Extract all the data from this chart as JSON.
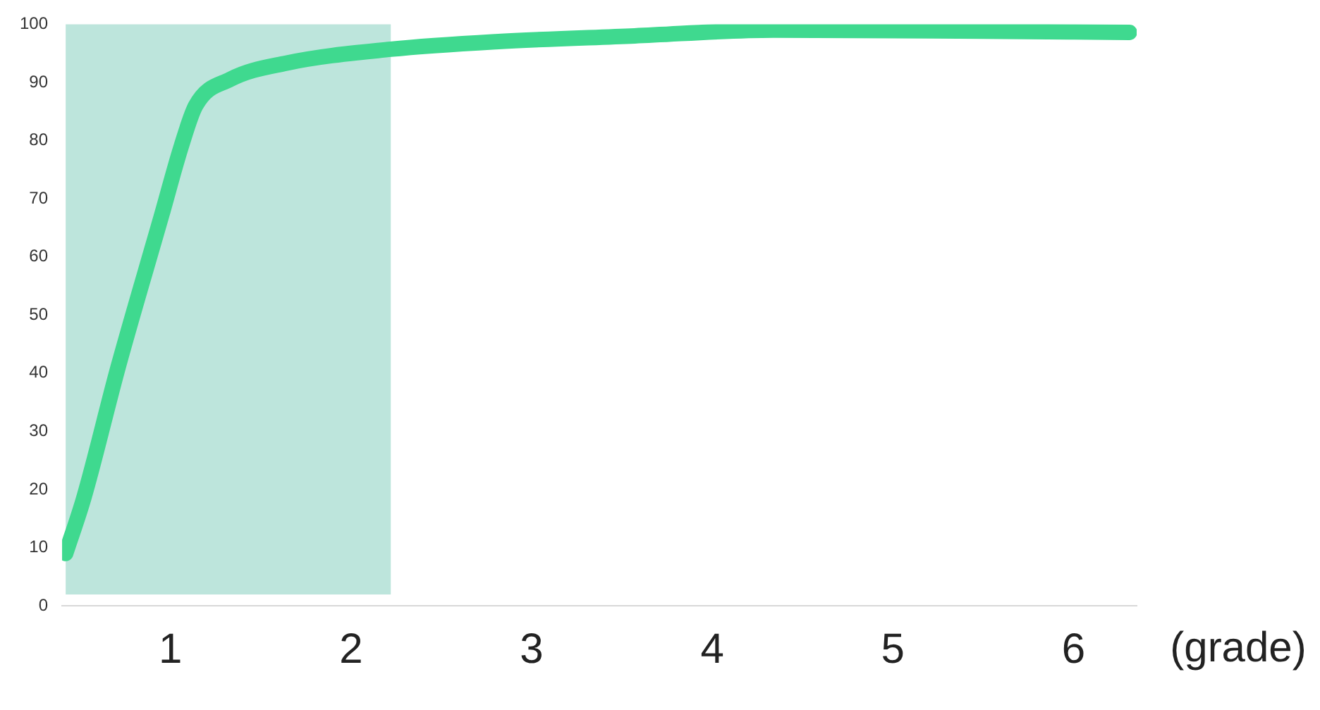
{
  "chart_data": {
    "type": "line",
    "xlabel": "(grade)",
    "xlim": [
      0.4,
      6.35
    ],
    "xticks": [
      1,
      2,
      3,
      4,
      5,
      6
    ],
    "ylim": [
      0,
      100
    ],
    "yticks": [
      0,
      10,
      20,
      30,
      40,
      50,
      60,
      70,
      80,
      90,
      100
    ],
    "grid": false,
    "legend": false,
    "marker": "none",
    "line_style": "solid",
    "bands": [
      {
        "axis": "x",
        "from": 0.42,
        "to": 2.22,
        "color": "#bde5dc"
      }
    ],
    "series": [
      {
        "color": "#3fd98f",
        "x": [
          0.42,
          0.52,
          0.71,
          0.95,
          1.06,
          1.14,
          1.33,
          1.64,
          2.22,
          2.8,
          3.57,
          4.34,
          5.5,
          6.31
        ],
        "values": [
          9,
          18.5,
          41,
          67,
          79,
          86,
          90.5,
          93.3,
          95.7,
          97,
          98,
          99,
          98.8,
          98.6
        ]
      }
    ]
  }
}
